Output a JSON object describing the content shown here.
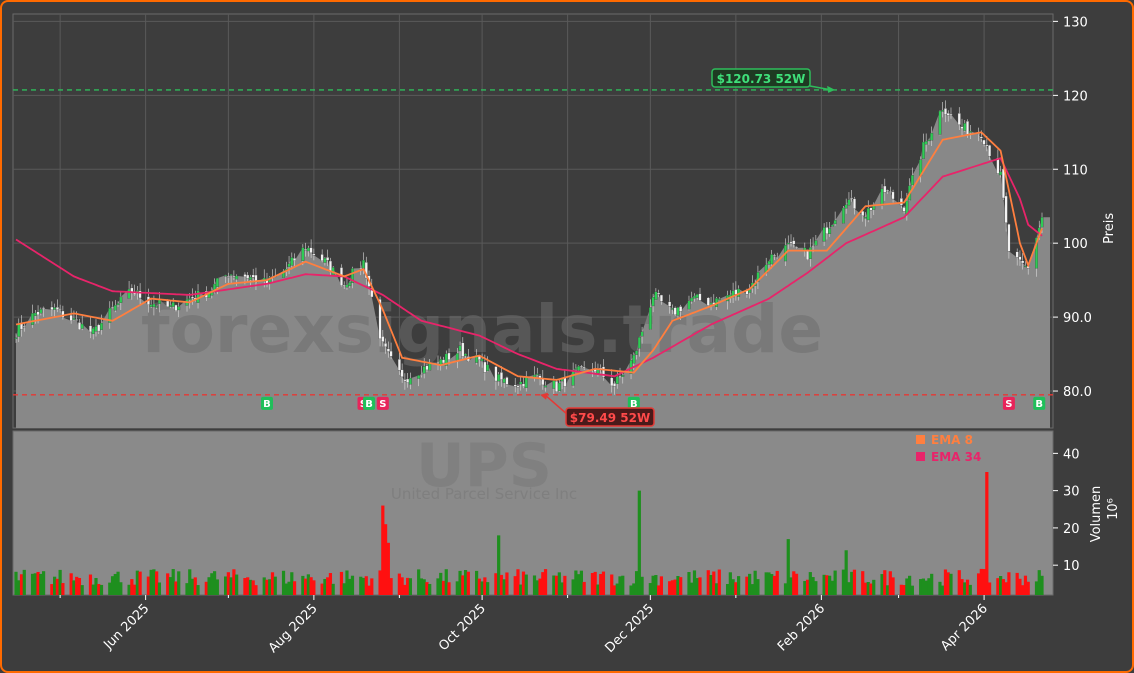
{
  "chart_data": {
    "type": "candlestick",
    "ticker": "UPS",
    "company": "United Parcel Service Inc",
    "watermark": "forexsignals.trade",
    "x_labels": [
      "Jun 2025",
      "Aug 2025",
      "Oct 2025",
      "Dec 2025",
      "Feb 2026",
      "Apr 2026"
    ],
    "x_range": [
      "2025-04-15",
      "2026-04-22"
    ],
    "price_axis": {
      "label": "Preis",
      "ticks": [
        "80.0",
        "90.0",
        "100",
        "110",
        "120",
        "130"
      ],
      "ylim": [
        75,
        131
      ]
    },
    "volume_axis": {
      "label": "Volumen",
      "unit": "10⁶",
      "ticks": [
        "10",
        "20",
        "30",
        "40"
      ],
      "ylim": [
        2,
        46
      ]
    },
    "high_52w": {
      "label": "$120.73 52W",
      "value": 120.73,
      "date": "2026-02-06",
      "color": "#2ebd5b"
    },
    "low_52w": {
      "label": "$79.49 52W",
      "value": 79.49,
      "date": "2025-10-22",
      "color": "#e53935"
    },
    "legend": [
      {
        "label": "EMA 8",
        "color": "#ff7f3f"
      },
      {
        "label": "EMA 34",
        "color": "#e8246a"
      }
    ],
    "close_series": [
      [
        "2025-04-15",
        88.0
      ],
      [
        "2025-04-22",
        90.5
      ],
      [
        "2025-04-29",
        91.0
      ],
      [
        "2025-05-06",
        89.5
      ],
      [
        "2025-05-13",
        87.8
      ],
      [
        "2025-05-20",
        91.0
      ],
      [
        "2025-05-27",
        93.5
      ],
      [
        "2025-06-03",
        92.0
      ],
      [
        "2025-06-10",
        91.2
      ],
      [
        "2025-06-17",
        92.5
      ],
      [
        "2025-06-24",
        93.5
      ],
      [
        "2025-07-01",
        96.0
      ],
      [
        "2025-07-08",
        95.5
      ],
      [
        "2025-07-15",
        94.5
      ],
      [
        "2025-07-22",
        96.5
      ],
      [
        "2025-07-29",
        99.5
      ],
      [
        "2025-08-05",
        97.5
      ],
      [
        "2025-08-12",
        94.5
      ],
      [
        "2025-08-19",
        97.5
      ],
      [
        "2025-08-26",
        86.0
      ],
      [
        "2025-09-02",
        81.5
      ],
      [
        "2025-09-09",
        83.0
      ],
      [
        "2025-09-16",
        84.0
      ],
      [
        "2025-09-23",
        85.5
      ],
      [
        "2025-09-30",
        84.0
      ],
      [
        "2025-10-07",
        81.5
      ],
      [
        "2025-10-14",
        81.0
      ],
      [
        "2025-10-21",
        82.0
      ],
      [
        "2025-10-28",
        80.5
      ],
      [
        "2025-11-04",
        82.5
      ],
      [
        "2025-11-11",
        83.0
      ],
      [
        "2025-11-18",
        80.8
      ],
      [
        "2025-11-25",
        84.5
      ],
      [
        "2025-12-02",
        93.0
      ],
      [
        "2025-12-09",
        90.5
      ],
      [
        "2025-12-16",
        92.5
      ],
      [
        "2025-12-23",
        92.0
      ],
      [
        "2025-12-30",
        93.0
      ],
      [
        "2026-01-06",
        94.0
      ],
      [
        "2026-01-13",
        98.0
      ],
      [
        "2026-01-20",
        99.5
      ],
      [
        "2026-01-27",
        98.5
      ],
      [
        "2026-02-03",
        102.0
      ],
      [
        "2026-02-10",
        106.0
      ],
      [
        "2026-02-17",
        104.0
      ],
      [
        "2026-02-24",
        107.0
      ],
      [
        "2026-03-03",
        105.0
      ],
      [
        "2026-03-10",
        113.0
      ],
      [
        "2026-03-17",
        118.5
      ],
      [
        "2026-03-24",
        115.5
      ],
      [
        "2026-03-31",
        115.0
      ],
      [
        "2026-04-07",
        109.0
      ],
      [
        "2026-04-10",
        99.0
      ],
      [
        "2026-04-14",
        97.0
      ],
      [
        "2026-04-17",
        96.5
      ],
      [
        "2026-04-20",
        101.0
      ],
      [
        "2026-04-22",
        103.5
      ]
    ],
    "ema8": [
      [
        "2025-04-15",
        89.0
      ],
      [
        "2025-05-06",
        90.5
      ],
      [
        "2025-05-20",
        89.5
      ],
      [
        "2025-06-03",
        92.5
      ],
      [
        "2025-06-17",
        92.0
      ],
      [
        "2025-07-01",
        94.5
      ],
      [
        "2025-07-15",
        95.0
      ],
      [
        "2025-07-29",
        97.5
      ],
      [
        "2025-08-12",
        95.5
      ],
      [
        "2025-08-19",
        96.5
      ],
      [
        "2025-08-26",
        91.0
      ],
      [
        "2025-09-02",
        84.5
      ],
      [
        "2025-09-16",
        83.5
      ],
      [
        "2025-09-30",
        84.8
      ],
      [
        "2025-10-14",
        82.0
      ],
      [
        "2025-10-28",
        81.5
      ],
      [
        "2025-11-11",
        83.0
      ],
      [
        "2025-11-25",
        82.5
      ],
      [
        "2025-12-02",
        85.5
      ],
      [
        "2025-12-09",
        89.5
      ],
      [
        "2025-12-23",
        91.5
      ],
      [
        "2026-01-06",
        93.8
      ],
      [
        "2026-01-20",
        99.0
      ],
      [
        "2026-02-03",
        99.0
      ],
      [
        "2026-02-17",
        105.0
      ],
      [
        "2026-03-03",
        105.5
      ],
      [
        "2026-03-17",
        114.0
      ],
      [
        "2026-03-31",
        115.0
      ],
      [
        "2026-04-07",
        112.5
      ],
      [
        "2026-04-14",
        100.0
      ],
      [
        "2026-04-17",
        97.0
      ],
      [
        "2026-04-22",
        102.0
      ]
    ],
    "ema34": [
      [
        "2025-04-15",
        100.5
      ],
      [
        "2025-05-06",
        95.5
      ],
      [
        "2025-05-20",
        93.5
      ],
      [
        "2025-06-17",
        93.0
      ],
      [
        "2025-07-15",
        94.5
      ],
      [
        "2025-07-29",
        95.8
      ],
      [
        "2025-08-12",
        95.5
      ],
      [
        "2025-08-26",
        93.0
      ],
      [
        "2025-09-09",
        89.5
      ],
      [
        "2025-09-30",
        87.5
      ],
      [
        "2025-10-14",
        85.0
      ],
      [
        "2025-10-28",
        83.0
      ],
      [
        "2025-11-18",
        82.0
      ],
      [
        "2025-12-02",
        84.5
      ],
      [
        "2025-12-23",
        89.0
      ],
      [
        "2026-01-13",
        92.5
      ],
      [
        "2026-01-27",
        96.0
      ],
      [
        "2026-02-10",
        100.0
      ],
      [
        "2026-03-03",
        103.5
      ],
      [
        "2026-03-17",
        109.0
      ],
      [
        "2026-04-07",
        111.5
      ],
      [
        "2026-04-14",
        106.0
      ],
      [
        "2026-04-17",
        102.5
      ],
      [
        "2026-04-22",
        101.0
      ]
    ],
    "signals": [
      {
        "label": "B",
        "date": "2025-07-15",
        "type": "buy"
      },
      {
        "label": "S",
        "date": "2025-08-19",
        "type": "sell"
      },
      {
        "label": "B",
        "date": "2025-08-21",
        "type": "buy"
      },
      {
        "label": "S",
        "date": "2025-08-26",
        "type": "sell"
      },
      {
        "label": "B",
        "date": "2025-11-25",
        "type": "buy"
      },
      {
        "label": "S",
        "date": "2026-04-10",
        "type": "sell"
      },
      {
        "label": "B",
        "date": "2026-04-21",
        "type": "buy"
      }
    ],
    "volume_spikes": [
      [
        "2025-08-26",
        26
      ],
      [
        "2025-08-27",
        21
      ],
      [
        "2025-08-28",
        16
      ],
      [
        "2025-10-07",
        18
      ],
      [
        "2025-11-27",
        30
      ],
      [
        "2026-01-20",
        17
      ],
      [
        "2026-02-10",
        14
      ],
      [
        "2026-04-02",
        35
      ]
    ]
  }
}
